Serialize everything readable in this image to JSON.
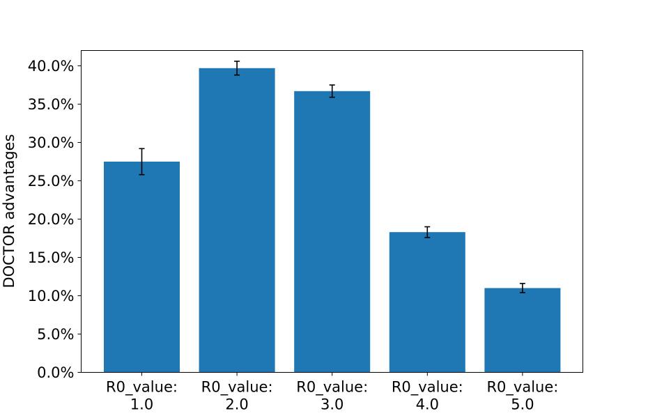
{
  "chart_data": {
    "type": "bar",
    "title": "",
    "xlabel": "",
    "ylabel": "DOCTOR advantages",
    "categories": [
      [
        "R0_value:",
        "1.0"
      ],
      [
        "R0_value:",
        "2.0"
      ],
      [
        "R0_value:",
        "3.0"
      ],
      [
        "R0_value:",
        "4.0"
      ],
      [
        "R0_value:",
        "5.0"
      ]
    ],
    "values": [
      27.5,
      39.7,
      36.7,
      18.3,
      11.0
    ],
    "errors": [
      1.7,
      0.9,
      0.8,
      0.7,
      0.6
    ],
    "ylim": [
      0,
      42
    ],
    "yticks": [
      0,
      5,
      10,
      15,
      20,
      25,
      30,
      35,
      40
    ],
    "ytick_labels": [
      "0.0%",
      "5.0%",
      "10.0%",
      "15.0%",
      "20.0%",
      "25.0%",
      "30.0%",
      "35.0%",
      "40.0%"
    ],
    "bar_color": "#1f77b4",
    "error_color": "#000000",
    "grid": false,
    "legend": "none"
  }
}
